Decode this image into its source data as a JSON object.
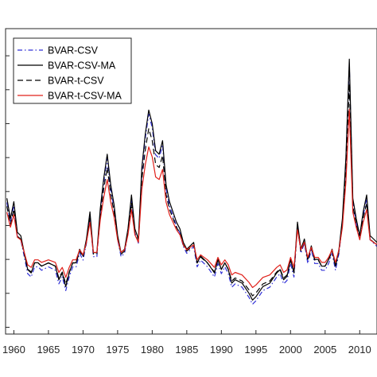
{
  "chart_data": {
    "type": "line",
    "xlim": [
      1958.8,
      2012.5
    ],
    "ylim": [
      -1.2,
      7.8
    ],
    "x_ticks": [
      1960,
      1965,
      1970,
      1975,
      1980,
      1985,
      1990,
      1995,
      2000,
      2005,
      2010
    ],
    "x_tick_labels": [
      "1960",
      "1965",
      "1970",
      "1975",
      "1980",
      "1985",
      "1990",
      "1995",
      "2000",
      "2005",
      "2010"
    ],
    "y_ticks": [
      -1,
      0,
      1,
      2,
      3,
      4,
      5,
      6,
      7
    ],
    "grid": false,
    "legend_position": "top-left",
    "base_series": {
      "x": [
        1959.0,
        1959.5,
        1960.0,
        1960.5,
        1961.0,
        1961.5,
        1962.0,
        1962.5,
        1963.0,
        1963.5,
        1964.0,
        1965.0,
        1966.0,
        1966.5,
        1967.0,
        1967.5,
        1968.0,
        1968.5,
        1969.0,
        1969.5,
        1970.0,
        1970.5,
        1971.0,
        1971.5,
        1972.0,
        1972.5,
        1973.0,
        1973.5,
        1974.0,
        1974.5,
        1975.0,
        1975.5,
        1976.0,
        1976.5,
        1977.0,
        1977.5,
        1978.0,
        1978.5,
        1979.0,
        1979.5,
        1980.0,
        1980.5,
        1981.0,
        1981.5,
        1982.0,
        1982.5,
        1983.0,
        1983.5,
        1984.0,
        1984.5,
        1985.0,
        1985.5,
        1986.0,
        1986.5,
        1987.0,
        1988.0,
        1989.0,
        1989.5,
        1990.0,
        1990.5,
        1991.0,
        1991.5,
        1992.0,
        1993.0,
        1994.0,
        1994.5,
        1995.0,
        1996.0,
        1997.0,
        1998.0,
        1998.5,
        1999.0,
        1999.5,
        2000.0,
        2000.5,
        2001.0,
        2001.5,
        2002.0,
        2002.5,
        2003.0,
        2003.5,
        2004.0,
        2004.5,
        2005.0,
        2005.5,
        2006.0,
        2006.5,
        2007.0,
        2007.5,
        2008.0,
        2008.5,
        2009.0,
        2009.5,
        2010.0,
        2010.5,
        2011.0,
        2011.5,
        2012.0,
        2012.5
      ],
      "y": [
        2.8,
        2.2,
        2.7,
        1.8,
        1.7,
        1.2,
        0.7,
        0.6,
        0.9,
        0.9,
        0.8,
        0.9,
        0.8,
        0.4,
        0.6,
        0.2,
        0.6,
        0.9,
        0.9,
        1.3,
        1.1,
        1.6,
        2.4,
        1.2,
        1.2,
        2.5,
        3.4,
        4.1,
        3.2,
        2.6,
        1.7,
        1.2,
        1.3,
        1.9,
        2.9,
        1.9,
        1.6,
        3.7,
        4.7,
        5.4,
        5.0,
        4.2,
        4.1,
        4.5,
        3.2,
        2.7,
        2.4,
        2.1,
        1.9,
        1.5,
        1.3,
        1.4,
        1.5,
        0.9,
        1.1,
        0.9,
        0.6,
        1.0,
        0.7,
        0.9,
        0.7,
        0.3,
        0.4,
        0.3,
        0.0,
        -0.2,
        -0.1,
        0.2,
        0.3,
        0.6,
        0.7,
        0.4,
        0.5,
        1.0,
        0.6,
        2.1,
        1.3,
        1.6,
        1.0,
        1.4,
        1.0,
        1.0,
        0.8,
        0.8,
        1.0,
        1.3,
        0.8,
        1.3,
        2.2,
        4.0,
        6.9,
        2.8,
        2.2,
        1.7,
        2.4,
        2.9,
        1.7,
        1.6,
        1.5
      ]
    },
    "series": [
      {
        "name": "BVAR-CSV",
        "color": "#3030d8",
        "dash": "dash-dot",
        "scale": 1.0,
        "offset": -0.12
      },
      {
        "name": "BVAR-CSV-MA",
        "color": "#000000",
        "dash": "solid",
        "scale": 1.0,
        "offset": 0.0
      },
      {
        "name": "BVAR-t-CSV",
        "color": "#000000",
        "dash": "dashed",
        "scale": 0.88,
        "offset": 0.1
      },
      {
        "name": "BVAR-t-CSV-MA",
        "color": "#e0201a",
        "dash": "solid",
        "scale": 0.74,
        "offset": 0.32
      }
    ]
  }
}
